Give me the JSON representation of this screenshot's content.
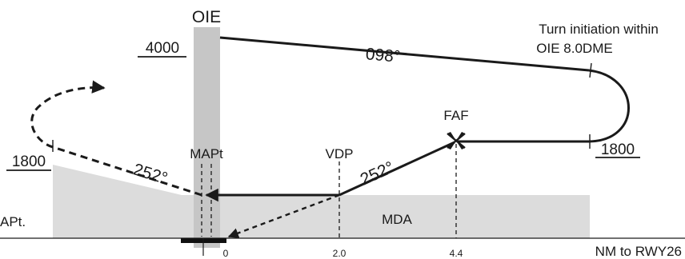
{
  "navaid": {
    "name": "OIE"
  },
  "altitudes": {
    "initial": "4000",
    "missed_approach_climb": "1800",
    "procedure_turn": "1800"
  },
  "courses": {
    "outbound": "098°",
    "inbound": "252°",
    "missed_approach": "252°"
  },
  "notes": {
    "turn_line1": "Turn initiation within",
    "turn_line2": "OIE 8.0DME"
  },
  "fixes": {
    "faf": "FAF",
    "vdp": "VDP",
    "mapt": "MAPt"
  },
  "minimums": {
    "mda": "MDA"
  },
  "airport": {
    "label": "APt."
  },
  "distance_axis": {
    "ticks": [
      "0",
      "2.0",
      "4.4"
    ],
    "unit_label": "NM to RWY26"
  },
  "colors": {
    "line": "#1a1a1a",
    "obstacle_fill": "#dcdcdc",
    "navaid_band": "#c6c6c6",
    "runway": "#111111"
  }
}
